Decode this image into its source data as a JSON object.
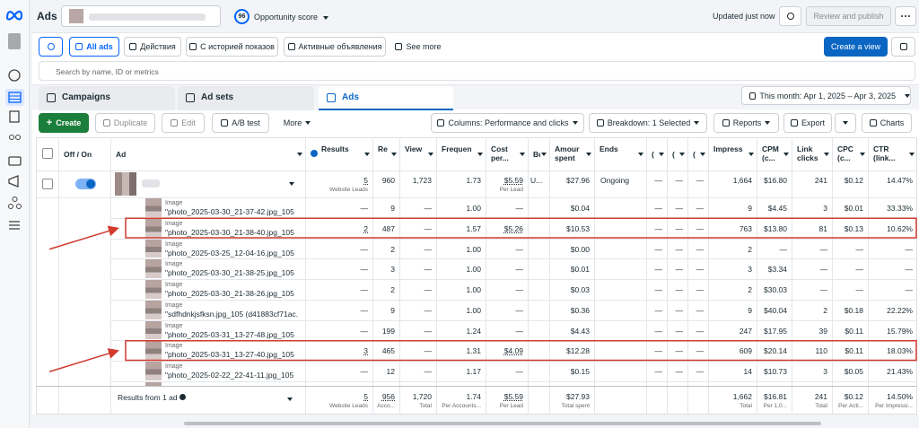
{
  "nav": {
    "title": "Ads",
    "score": "96",
    "score_label": "Opportunity score",
    "updated": "Updated just now",
    "review": "Review and publish"
  },
  "filters": [
    "All ads",
    "Действия",
    "С историей показов",
    "Активные объявления",
    "See more"
  ],
  "create_view": "Create a view",
  "search_placeholder": "Search by name, ID or metrics",
  "tabs": [
    "Campaigns",
    "Ad sets",
    "Ads"
  ],
  "date_range": "This month: Apr 1, 2025 – Apr 3, 2025",
  "toolbar": {
    "create": "Create",
    "duplicate": "Duplicate",
    "edit": "Edit",
    "ab_test": "A/B test",
    "more": "More",
    "columns": "Columns: Performance and clicks",
    "breakdown": "Breakdown: 1 Selected",
    "reports": "Reports",
    "export": "Export",
    "charts": "Charts"
  },
  "table": {
    "columns": [
      "Off / On",
      "Ad",
      "Results",
      "Re",
      "View",
      "Frequen",
      "Cost per...",
      "Bu",
      "Amour spent",
      "Ends",
      "(",
      "(",
      "(",
      "Impress",
      "CPM (c...",
      "Link clicks",
      "CPC (c...",
      "CTR (link..."
    ],
    "parent": {
      "cells": [
        "5",
        "960",
        "1,723",
        "1.73",
        "$5.59",
        "U...",
        "$27.96",
        "Ongoing",
        "—",
        "—",
        "—",
        "1,664",
        "$16.80",
        "241",
        "$0.12",
        "14.47%"
      ],
      "subs": [
        "Website Leads",
        null,
        null,
        null,
        "Per Lead",
        null,
        null,
        null,
        null,
        null,
        null,
        null,
        null,
        null,
        null,
        null
      ]
    },
    "rows": [
      {
        "type": "Image",
        "name": "\"photo_2025-03-30_21-37-42.jpg_105",
        "cells": [
          "—",
          "9",
          "—",
          "1.00",
          "—",
          null,
          "$0.04",
          null,
          "—",
          "—",
          "—",
          "9",
          "$4.45",
          "3",
          "$0.01",
          "33.33%"
        ]
      },
      {
        "type": "Image",
        "name": "\"photo_2025-03-30_21-38-40.jpg_105",
        "highlighted": true,
        "cells": [
          "2",
          "487",
          "—",
          "1.57",
          "$5.26",
          null,
          "$10.53",
          null,
          "—",
          "—",
          "—",
          "763",
          "$13.80",
          "81",
          "$0.13",
          "10.62%"
        ]
      },
      {
        "type": "Image",
        "name": "\"photo_2025-03-25_12-04-16.jpg_105",
        "cells": [
          "—",
          "2",
          "—",
          "1.00",
          "—",
          null,
          "$0.00",
          null,
          "—",
          "—",
          "—",
          "2",
          "—",
          "—",
          "—",
          "—"
        ]
      },
      {
        "type": "Image",
        "name": "\"photo_2025-03-30_21-38-25.jpg_105",
        "cells": [
          "—",
          "3",
          "—",
          "1.00",
          "—",
          null,
          "$0.01",
          null,
          "—",
          "—",
          "—",
          "3",
          "$3.34",
          "—",
          "—",
          "—"
        ]
      },
      {
        "type": "Image",
        "name": "\"photo_2025-03-30_21-38-26.jpg_105",
        "cells": [
          "—",
          "2",
          "—",
          "1.00",
          "—",
          null,
          "$0.03",
          null,
          "—",
          "—",
          "—",
          "2",
          "$30.03",
          "—",
          "—",
          "—"
        ]
      },
      {
        "type": "Image",
        "name": "\"sdfhdnkjsfksn.jpg_105 (d41883cf71ac...",
        "cells": [
          "—",
          "9",
          "—",
          "1.00",
          "—",
          null,
          "$0.36",
          null,
          "—",
          "—",
          "—",
          "9",
          "$40.04",
          "2",
          "$0.18",
          "22.22%"
        ]
      },
      {
        "type": "Image",
        "name": "\"photo_2025-03-31_13-27-48.jpg_105",
        "cells": [
          "—",
          "199",
          "—",
          "1.24",
          "—",
          null,
          "$4.43",
          null,
          "—",
          "—",
          "—",
          "247",
          "$17.95",
          "39",
          "$0.11",
          "15.79%"
        ]
      },
      {
        "type": "Image",
        "name": "\"photo_2025-03-31_13-27-40.jpg_105",
        "highlighted": true,
        "cells": [
          "3",
          "465",
          "—",
          "1.31",
          "$4.09",
          null,
          "$12.28",
          null,
          "—",
          "—",
          "—",
          "609",
          "$20.14",
          "110",
          "$0.11",
          "18.03%"
        ]
      },
      {
        "type": "Image",
        "name": "\"photo_2025-02-22_22-41-11.jpg_105",
        "cells": [
          "—",
          "12",
          "—",
          "1.17",
          "—",
          null,
          "$0.15",
          null,
          "—",
          "—",
          "—",
          "14",
          "$10.73",
          "3",
          "$0.05",
          "21.43%"
        ]
      }
    ],
    "footer": {
      "label": "Results from 1 ad",
      "cells": [
        "5",
        "956",
        "1,720",
        "1.74",
        "$5.59",
        null,
        "$27.93",
        null,
        null,
        null,
        null,
        "1,662",
        "$16.81",
        "241",
        "$0.12",
        "14.50%"
      ],
      "subs": [
        "Website Leads",
        "Acco...",
        "Total",
        "Per Accounts...",
        "Per Lead",
        null,
        "Total spent",
        null,
        null,
        null,
        null,
        "Total",
        "Per 1,0...",
        "Total",
        "Per Acti...",
        "Per Impressi..."
      ]
    }
  }
}
